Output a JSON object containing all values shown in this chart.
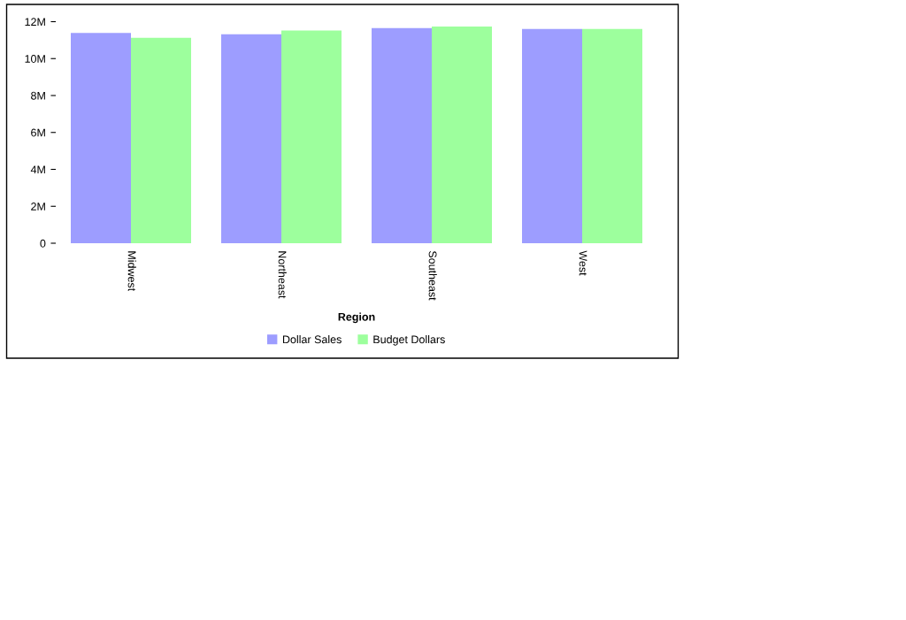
{
  "chart_data": {
    "type": "bar",
    "xlabel": "Region",
    "categories": [
      "Midwest",
      "Northeast",
      "Southeast",
      "West"
    ],
    "series": [
      {
        "name": "Dollar Sales",
        "color": "#9d9dff",
        "values": [
          11390000,
          11320000,
          11650000,
          11610000
        ]
      },
      {
        "name": "Budget Dollars",
        "color": "#9dff9d",
        "values": [
          11130000,
          11520000,
          11740000,
          11610000
        ]
      }
    ],
    "ylim": [
      0,
      12000000
    ],
    "yticks": [
      {
        "value": 0,
        "label": "0"
      },
      {
        "value": 2000000,
        "label": "2M"
      },
      {
        "value": 4000000,
        "label": "4M"
      },
      {
        "value": 6000000,
        "label": "6M"
      },
      {
        "value": 8000000,
        "label": "8M"
      },
      {
        "value": 10000000,
        "label": "10M"
      },
      {
        "value": 12000000,
        "label": "12M"
      }
    ],
    "grid": false,
    "legend": "bottom"
  }
}
